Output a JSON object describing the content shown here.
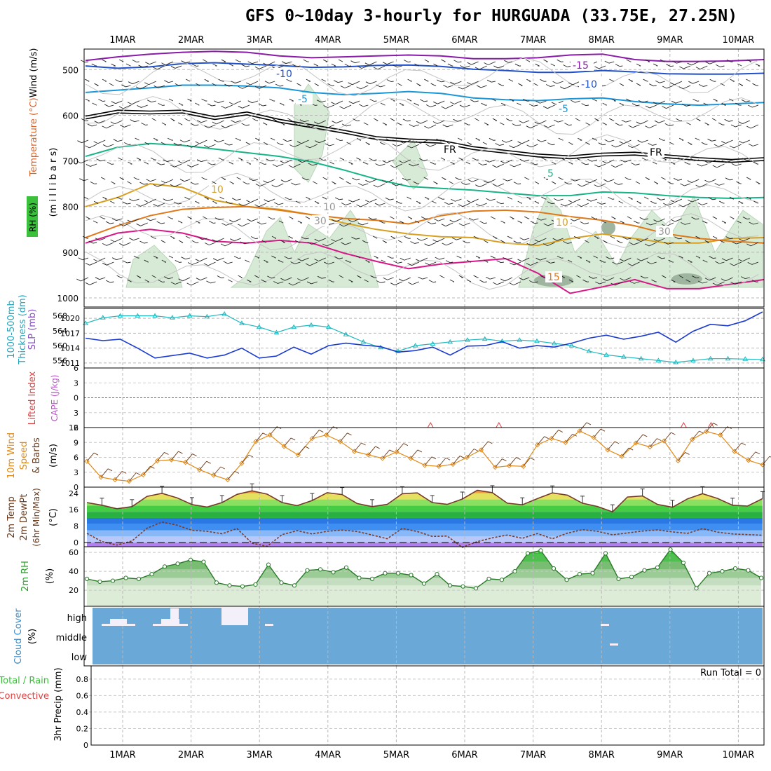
{
  "title": "GFS 0~10day 3-hourly for HURGUADA (33.75E, 27.25N)",
  "dates": [
    "1MAR",
    "2MAR",
    "3MAR",
    "4MAR",
    "5MAR",
    "6MAR",
    "7MAR",
    "8MAR",
    "9MAR",
    "10MAR"
  ],
  "colors": {
    "temp_purple": "#8a1aa8",
    "temp_blue": "#2050c8",
    "temp_lightblue": "#1a96d8",
    "temp_freezing": "#000000",
    "temp_green": "#18b488",
    "temp_gold": "#d8a020",
    "temp_orange": "#e07818",
    "temp_magenta": "#d81888",
    "thickness": "#20b8c0",
    "slp": "#1a3ad0",
    "lifted_zero": "#e04040",
    "wind_speed": "#e08a18",
    "barb": "#6b3a1a",
    "rh": "#32c832",
    "cloud": "#6aa8d8",
    "precip_grid": "#b0b0b0"
  },
  "panels": {
    "upper_air": {
      "ylabel_wind": "Wind (m/s)",
      "ylabel_temp": "Temperature (°C)",
      "ylabel_rh": "RH (%)",
      "ylabel_mb": "(m i l l i b a r s)",
      "contour_labels": [
        "-15",
        "-10",
        "-10",
        "-5",
        "-5",
        "FR",
        "FR",
        "5",
        "10",
        "10",
        "15",
        "10",
        "30",
        "30"
      ]
    },
    "thickness_slp": {
      "ylabel_thickness": "1000-500mb\nThickness (dm)",
      "ylabel_slp": "SLP (mb)"
    },
    "lifted": {
      "ylabel_lifted": "Lifted Index",
      "ylabel_cape": "CAPE (J/kg)"
    },
    "wind10m": {
      "ylabel_1": "10m Wind",
      "ylabel_2": "Speed",
      "ylabel_3": "& Barbs",
      "ylabel_units": "(m/s)"
    },
    "temp2m": {
      "ylabel_1": "2m Temp",
      "ylabel_2": "2m DewPt",
      "ylabel_3": "(6hr Min/Max)",
      "ylabel_units": "(°C)"
    },
    "rh2m": {
      "ylabel": "2m RH",
      "ylabel_units": "(%)"
    },
    "cloud": {
      "ylabel": "Cloud Cover",
      "ylabel_units": "(%)",
      "levels": [
        "high",
        "middle",
        "low"
      ]
    },
    "precip": {
      "ylabel_1": "3hr Precip (mm)",
      "ylabel_2": "Total / Rain",
      "ylabel_3": "Convective",
      "run_total": "Run Total = 0"
    }
  },
  "chart_data": [
    {
      "type": "contour",
      "name": "upper_air",
      "y_axis": {
        "label": "millibars",
        "ticks": [
          500,
          600,
          700,
          800,
          900,
          1000
        ],
        "range": [
          455,
          1020
        ]
      },
      "isotherms": [
        {
          "label": "-15",
          "values_mb": [
            480,
            472,
            466,
            462,
            460,
            462,
            470,
            474,
            472,
            470,
            468,
            470,
            476,
            476,
            474,
            468,
            466,
            478,
            482,
            482,
            481,
            478
          ]
        },
        {
          "label": "-10",
          "values_mb": [
            492,
            497,
            494,
            487,
            485,
            488,
            491,
            495,
            494,
            491,
            490,
            493,
            499,
            502,
            506,
            506,
            502,
            505,
            509,
            510,
            510,
            508
          ]
        },
        {
          "label": "-5",
          "values_mb": [
            550,
            545,
            540,
            534,
            534,
            536,
            540,
            550,
            555,
            552,
            548,
            552,
            562,
            566,
            568,
            564,
            562,
            570,
            575,
            578,
            575,
            572
          ]
        },
        {
          "label": "FR",
          "values_mb": [
            605,
            592,
            594,
            592,
            606,
            596,
            612,
            624,
            636,
            650,
            655,
            658,
            672,
            680,
            688,
            692,
            686,
            684,
            690,
            696,
            700,
            696
          ]
        },
        {
          "label": "5",
          "values_mb": [
            690,
            670,
            662,
            666,
            674,
            682,
            690,
            702,
            720,
            740,
            756,
            760,
            764,
            770,
            776,
            776,
            768,
            770,
            776,
            780,
            782,
            780
          ]
        },
        {
          "label": "10",
          "values_mb": [
            800,
            780,
            750,
            758,
            786,
            800,
            806,
            818,
            836,
            850,
            860,
            866,
            868,
            880,
            885,
            870,
            860,
            870,
            880,
            880,
            870,
            868
          ]
        },
        {
          "label": "15",
          "values_mb": [
            880,
            858,
            850,
            858,
            876,
            880,
            874,
            880,
            902,
            920,
            936,
            926,
            920,
            914,
            946,
            990,
            976,
            960,
            980,
            980,
            970,
            960
          ]
        }
      ]
    },
    {
      "type": "line",
      "name": "thickness_slp",
      "series": [
        {
          "name": "1000-500mb Thickness (dm)",
          "axis": "left",
          "ylim": [
            554,
            570
          ],
          "ticks": [
            556,
            560,
            564,
            568
          ],
          "values": [
            566,
            567.5,
            568,
            568,
            568,
            567.5,
            568,
            567.8,
            568.5,
            566,
            565,
            563.5,
            565,
            565.5,
            565,
            563,
            561,
            559.5,
            558.5,
            560,
            560.5,
            561,
            561.5,
            561.8,
            561.2,
            561.5,
            561.2,
            560.6,
            560,
            558.5,
            557.5,
            557,
            556.5,
            556,
            555.5,
            556,
            556.5,
            556.5,
            556.4,
            556.3
          ]
        },
        {
          "name": "SLP (mb)",
          "axis": "right",
          "ylim": [
            1010,
            1022
          ],
          "ticks": [
            1011,
            1014,
            1017,
            1020
          ],
          "values": [
            1016,
            1015.5,
            1015.8,
            1014,
            1012,
            1012.5,
            1013,
            1012,
            1012.6,
            1014,
            1012,
            1012.4,
            1014.2,
            1012.8,
            1014.5,
            1015,
            1014.6,
            1014.3,
            1013.2,
            1013.5,
            1014.2,
            1012.6,
            1014.4,
            1014.5,
            1015.3,
            1014,
            1014.5,
            1014.2,
            1015,
            1016,
            1016.6,
            1015.8,
            1016.4,
            1017.2,
            1015.2,
            1017.4,
            1018.8,
            1018.5,
            1019.5,
            1021.3
          ]
        }
      ]
    },
    {
      "type": "line",
      "name": "lifted_index",
      "y_axis": {
        "ticks": [
          -6,
          -3,
          0,
          3,
          6
        ],
        "tick_labels": [
          "6",
          "3",
          "0",
          "3",
          "6"
        ],
        "range": [
          -6,
          6
        ]
      },
      "cape_peaks_day": [
        5.5,
        6.5,
        9.2,
        9.6
      ]
    },
    {
      "type": "line",
      "name": "wind10m_speed",
      "y_axis": {
        "label": "m/s",
        "ticks": [
          0,
          3,
          6,
          9,
          12
        ],
        "range": [
          0,
          12
        ]
      },
      "values": [
        5.2,
        2,
        1.5,
        1.2,
        2.5,
        5.3,
        5.5,
        5,
        3.5,
        2.4,
        1.5,
        4.8,
        9.2,
        10.5,
        8.2,
        6.5,
        9.8,
        10.5,
        9.2,
        7.2,
        6.5,
        5.8,
        7.1,
        5.8,
        4.4,
        4.2,
        4.6,
        6,
        7.5,
        4,
        4.3,
        4.2,
        8.5,
        9.8,
        9,
        11.3,
        10,
        7.5,
        6.2,
        8.9,
        8.1,
        9.3,
        5.3,
        9.6,
        11.2,
        10.5,
        7.2,
        5.4,
        4.5
      ]
    },
    {
      "type": "area",
      "name": "temp2m",
      "y_axis": {
        "label": "°C",
        "ticks": [
          0,
          8,
          16,
          24
        ],
        "range": [
          -2,
          27
        ]
      },
      "temperature": [
        19.5,
        18.2,
        16.5,
        17.5,
        22.5,
        24,
        21.8,
        18.5,
        17.3,
        19.5,
        23.5,
        25.2,
        23.6,
        19.5,
        18,
        20.5,
        24.3,
        23.4,
        19,
        17.5,
        18.6,
        23.8,
        24.2,
        19.5,
        18.6,
        21.2,
        25.5,
        24.3,
        19.2,
        18.4,
        21.4,
        24.2,
        23.1,
        19.2,
        17.6,
        15,
        22.2,
        22.7,
        18.6,
        17.2,
        21.3,
        23.8,
        21.5,
        18.2,
        17.8,
        21.4
      ],
      "dewpoint": [
        4.5,
        0.5,
        -1.2,
        0.8,
        7,
        10,
        8.5,
        6,
        5.5,
        4.3,
        6.8,
        -0.3,
        -1.8,
        3.9,
        5.8,
        4.2,
        5.5,
        6.1,
        5.4,
        3.7,
        1.9,
        6.9,
        5.4,
        3,
        3.2,
        -2.3,
        0.5,
        2.3,
        3.7,
        2.1,
        4.4,
        1.9,
        4.6,
        6.3,
        5.5,
        3.8,
        4.7,
        5.6,
        6.2,
        5.2,
        4.5,
        6.8,
        5.1,
        4.2,
        3.9,
        3.6
      ]
    },
    {
      "type": "area",
      "name": "rh2m",
      "y_axis": {
        "label": "%",
        "ticks": [
          20,
          40,
          60
        ],
        "range": [
          3,
          66
        ]
      },
      "values": [
        32,
        29,
        30,
        33,
        32,
        37,
        45,
        48,
        52,
        50,
        28,
        25,
        24,
        26,
        47,
        28,
        25,
        41,
        42,
        39,
        44,
        33,
        32,
        38,
        38,
        36,
        27,
        37,
        25,
        24,
        22,
        32,
        31,
        40,
        59,
        62,
        43,
        31,
        37,
        38,
        59,
        32,
        34,
        41,
        44,
        63,
        49,
        22,
        38,
        40,
        43,
        41,
        33
      ]
    },
    {
      "type": "heatmap",
      "name": "cloud_cover",
      "levels": [
        "high",
        "middle",
        "low"
      ],
      "note": "near-zero cloud cover throughout"
    },
    {
      "type": "bar",
      "name": "precip_3hr",
      "y_axis": {
        "label": "mm",
        "ticks": [
          0,
          0.2,
          0.4,
          0.6,
          0.8
        ],
        "range": [
          0,
          0.96
        ]
      },
      "values": [],
      "run_total": 0
    }
  ]
}
